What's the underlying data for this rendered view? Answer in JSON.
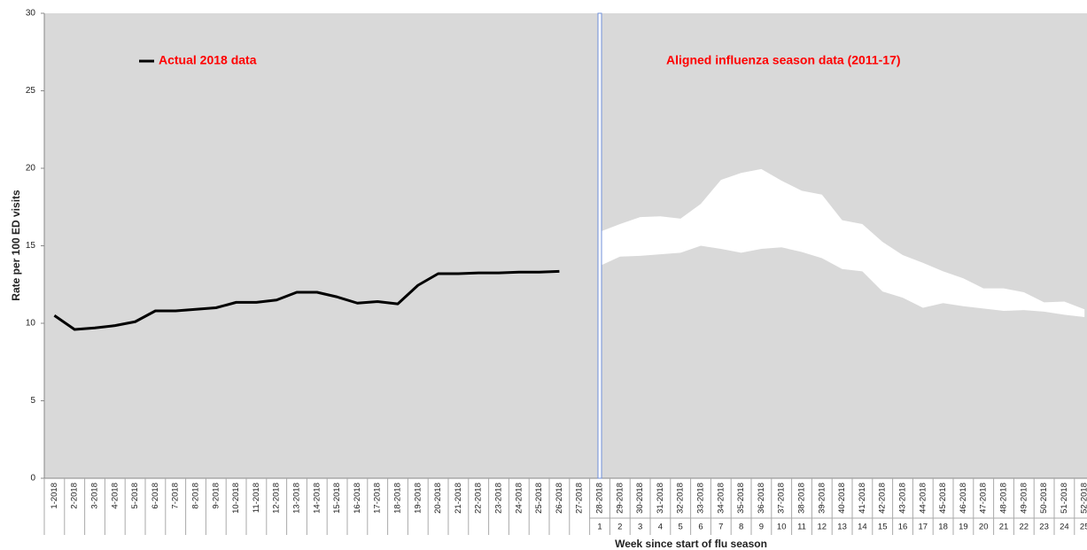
{
  "chart_data": {
    "type": "line",
    "y_label": "Rate per 100 ED visits",
    "x_label": "Week since start of flu season",
    "annotation": "Aligned influenza season data (2011-17)",
    "ylim": [
      0,
      30
    ],
    "yticks": [
      0,
      5,
      10,
      15,
      20,
      25,
      30
    ],
    "background": "#d9d9d9",
    "divider_color": "#6f8fd8",
    "categories": [
      "1-2018",
      "2-2018",
      "3-2018",
      "4-2018",
      "5-2018",
      "6-2018",
      "7-2018",
      "8-2018",
      "9-2018",
      "10-2018",
      "11-2018",
      "12-2018",
      "13-2018",
      "14-2018",
      "15-2018",
      "16-2018",
      "17-2018",
      "18-2018",
      "19-2018",
      "20-2018",
      "21-2018",
      "22-2018",
      "23-2018",
      "24-2018",
      "25-2018",
      "26-2018",
      "27-2018",
      "28-2018",
      "29-2018",
      "30-2018",
      "31-2018",
      "32-2018",
      "33-2018",
      "34-2018",
      "35-2018",
      "36-2018",
      "37-2018",
      "38-2018",
      "39-2018",
      "40-2018",
      "41-2018",
      "42-2018",
      "43-2018",
      "44-2018",
      "45-2018",
      "46-2018",
      "47-2018",
      "48-2018",
      "49-2018",
      "50-2018",
      "51-2018",
      "52-2018"
    ],
    "season_weeks": [
      null,
      null,
      null,
      null,
      null,
      null,
      null,
      null,
      null,
      null,
      null,
      null,
      null,
      null,
      null,
      null,
      null,
      null,
      null,
      null,
      null,
      null,
      null,
      null,
      null,
      null,
      null,
      1,
      2,
      3,
      4,
      5,
      6,
      7,
      8,
      9,
      10,
      11,
      12,
      13,
      14,
      15,
      16,
      17,
      18,
      19,
      20,
      21,
      22,
      23,
      24,
      25
    ],
    "series": [
      {
        "name": "Actual 2018 data",
        "color": "#000000",
        "values": [
          10.5,
          9.6,
          9.7,
          9.85,
          10.1,
          10.8,
          10.8,
          10.9,
          11.0,
          11.35,
          11.35,
          11.5,
          12.0,
          12.0,
          11.7,
          11.3,
          11.4,
          11.25,
          12.45,
          13.2,
          13.2,
          13.25,
          13.25,
          13.3,
          13.3,
          13.35,
          null,
          null,
          null,
          null,
          null,
          null,
          null,
          null,
          null,
          null,
          null,
          null,
          null,
          null,
          null,
          null,
          null,
          null,
          null,
          null,
          null,
          null,
          null,
          null,
          null,
          null
        ]
      }
    ],
    "band": {
      "color": "#ffffff",
      "high": [
        null,
        null,
        null,
        null,
        null,
        null,
        null,
        null,
        null,
        null,
        null,
        null,
        null,
        null,
        null,
        null,
        null,
        null,
        null,
        null,
        null,
        null,
        null,
        null,
        null,
        null,
        null,
        15.9,
        16.4,
        16.85,
        16.9,
        16.75,
        17.7,
        19.25,
        19.7,
        19.95,
        19.2,
        18.55,
        18.3,
        16.65,
        16.4,
        15.25,
        14.4,
        13.9,
        13.35,
        12.9,
        12.25,
        12.25,
        12.0,
        11.35,
        11.4,
        10.9
      ],
      "low": [
        null,
        null,
        null,
        null,
        null,
        null,
        null,
        null,
        null,
        null,
        null,
        null,
        null,
        null,
        null,
        null,
        null,
        null,
        null,
        null,
        null,
        null,
        null,
        null,
        null,
        null,
        null,
        13.7,
        14.3,
        14.35,
        14.45,
        14.55,
        15.0,
        14.8,
        14.55,
        14.8,
        14.9,
        14.6,
        14.2,
        13.5,
        13.35,
        12.05,
        11.65,
        11.0,
        11.3,
        11.1,
        10.95,
        10.8,
        10.85,
        10.75,
        10.55,
        10.4
      ]
    }
  }
}
